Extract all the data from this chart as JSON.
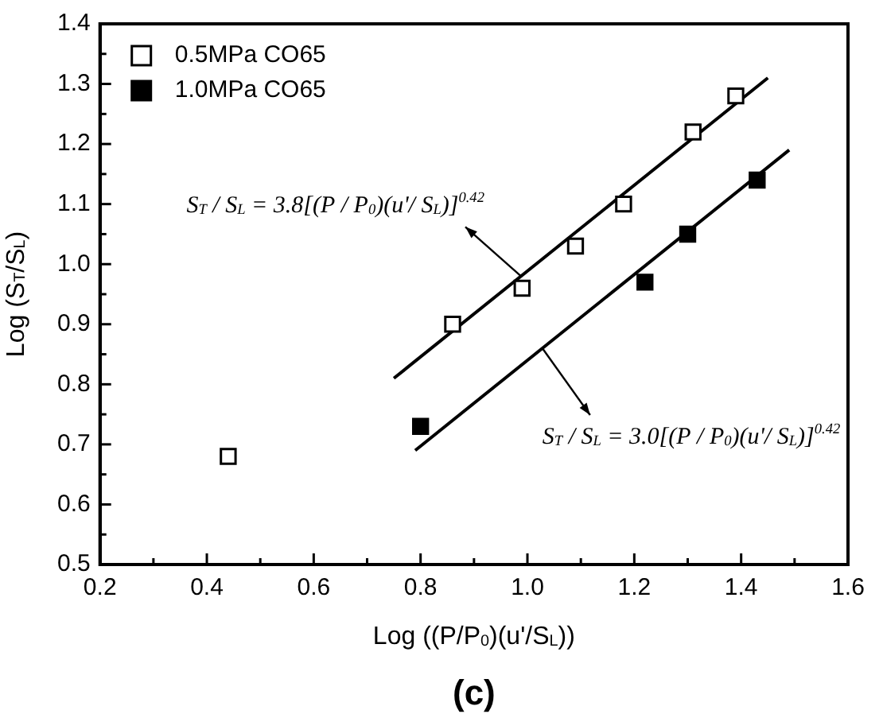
{
  "chart_data": {
    "type": "scatter",
    "title": "(c)",
    "xlabel": "Log ((P/P$_{0}$)(u'/S$_{L}$))",
    "ylabel": "Log (S$_{T}$/S$_{L}$)",
    "xlim": [
      0.2,
      1.6
    ],
    "ylim": [
      0.5,
      1.4
    ],
    "xticks": [
      0.2,
      {
        "value": 0.3,
        "label": null
      },
      0.4,
      {
        "value": 0.5,
        "label": null
      },
      0.6,
      {
        "value": 0.7,
        "label": null
      },
      0.8,
      {
        "value": 0.9,
        "label": null
      },
      {
        "value": 1.0,
        "label": "1.0"
      },
      {
        "value": 1.1,
        "label": null
      },
      1.2,
      {
        "value": 1.3,
        "label": null
      },
      1.4,
      {
        "value": 1.5,
        "label": null
      },
      1.6
    ],
    "yticks": [
      0.5,
      {
        "value": 0.55,
        "label": null
      },
      0.6,
      {
        "value": 0.65,
        "label": null
      },
      0.7,
      {
        "value": 0.75,
        "label": null
      },
      0.8,
      {
        "value": 0.85,
        "label": null
      },
      0.9,
      {
        "value": 0.95,
        "label": null
      },
      {
        "value": 1.0,
        "label": "1.0"
      },
      {
        "value": 1.05,
        "label": null
      },
      1.1,
      {
        "value": 1.15,
        "label": null
      },
      1.2,
      {
        "value": 1.25,
        "label": null
      },
      1.3,
      {
        "value": 1.35,
        "label": null
      },
      1.4
    ],
    "grid": false,
    "legend": "top left",
    "marker": "square",
    "series": [
      {
        "name": "0.5MPa CO65",
        "color": "#000000",
        "x": [
          0.44,
          0.86,
          0.99,
          1.09,
          1.18,
          1.31,
          1.39
        ],
        "values": [
          0.68,
          0.9,
          0.96,
          1.03,
          1.1,
          1.22,
          1.28
        ]
      },
      {
        "name": "1.0MPa CO65",
        "color": "#000000",
        "x": [
          0.8,
          1.22,
          1.3,
          1.43
        ],
        "values": [
          0.73,
          0.97,
          1.05,
          1.14
        ]
      },
      {
        "type": "line",
        "color": "#000000",
        "marker": "none",
        "x": [
          0.75,
          1.45
        ],
        "values": [
          0.81,
          1.31
        ]
      },
      {
        "type": "line",
        "color": "#000000",
        "marker": "none",
        "x": [
          0.79,
          1.49
        ],
        "values": [
          0.69,
          1.19
        ]
      }
    ],
    "annotations": [
      "S$_{T}$ / S$_{L}$ = 3.8[(P / P$_{0}$)(u'/ S$_{L}$)]$^{0.42}$",
      "S$_{T}$ / S$_{L}$ = 3.0[(P / P$_{0}$)(u'/ S$_{L}$)]$^{0.42}$"
    ]
  }
}
